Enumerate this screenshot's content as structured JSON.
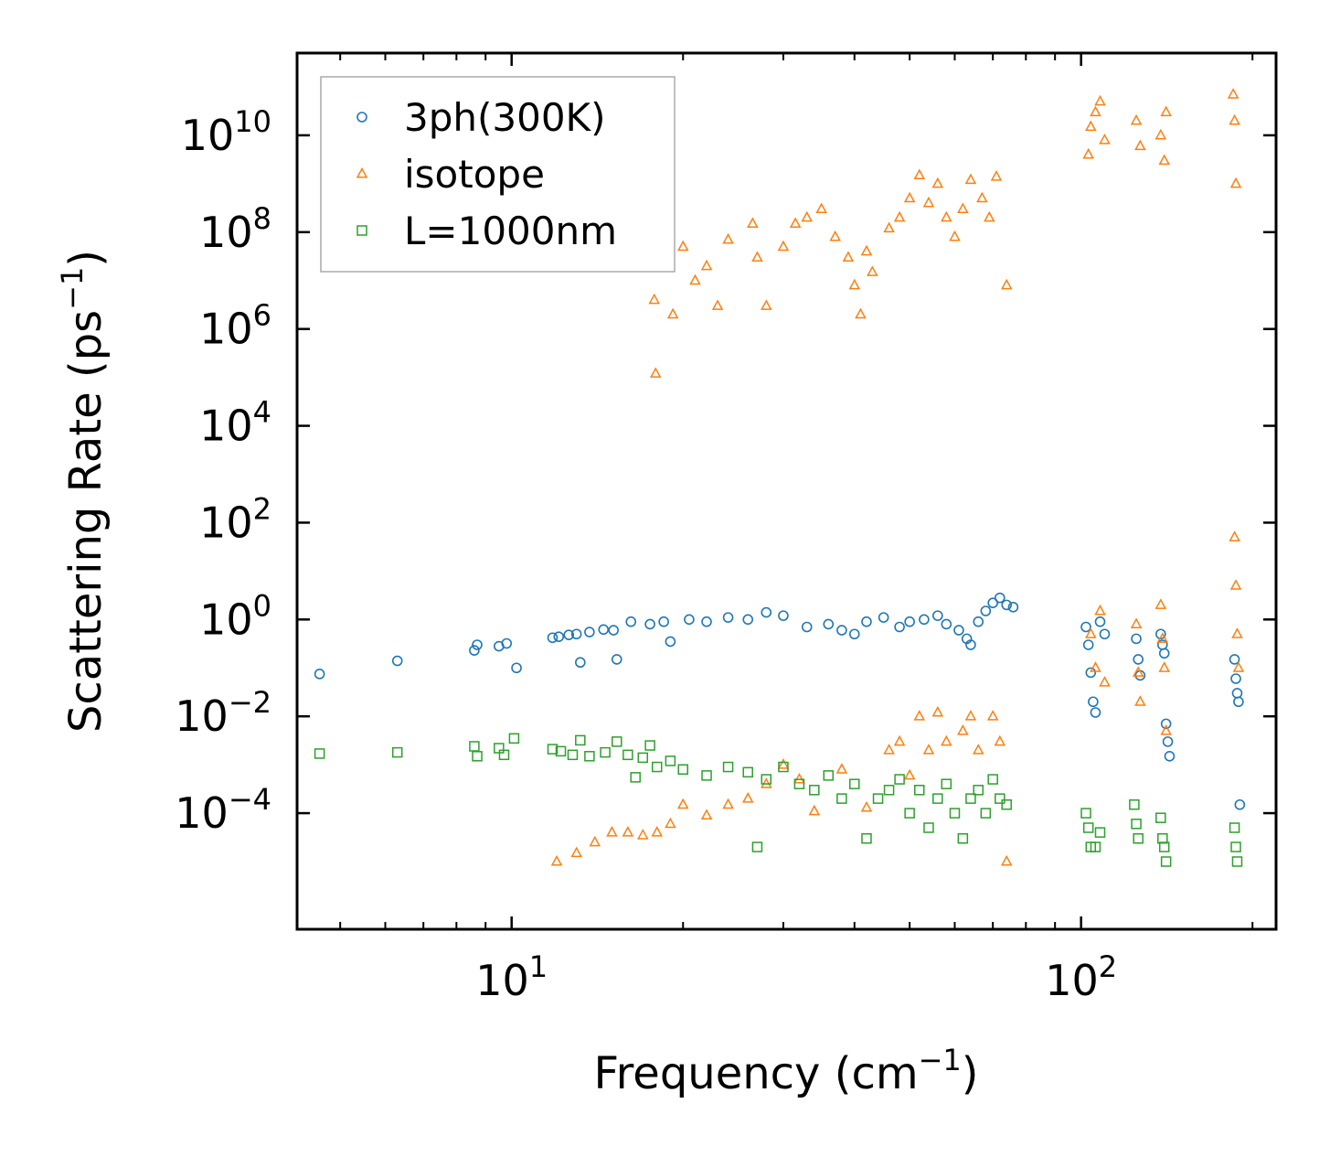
{
  "chart_data": {
    "type": "scatter",
    "title": "",
    "xlabel": "Frequency (cm$^{-1}$)",
    "xlabel_parts": {
      "text": "Frequency (cm",
      "sup": "−1",
      "tail": ")"
    },
    "ylabel_parts": {
      "text": "Scattering Rate (ps",
      "sup": "−1",
      "tail": ")"
    },
    "xscale": "log",
    "yscale": "log",
    "xlim": [
      4.2,
      220
    ],
    "ylim": [
      4e-07,
      500000000000.0
    ],
    "x_ticks": [
      {
        "value": 10,
        "base": "10",
        "exp": "1"
      },
      {
        "value": 100,
        "base": "10",
        "exp": "2"
      }
    ],
    "y_ticks": [
      {
        "value": 0.0001,
        "base": "10",
        "exp": "−4"
      },
      {
        "value": 0.01,
        "base": "10",
        "exp": "−2"
      },
      {
        "value": 1,
        "base": "10",
        "exp": "0"
      },
      {
        "value": 100,
        "base": "10",
        "exp": "2"
      },
      {
        "value": 10000.0,
        "base": "10",
        "exp": "4"
      },
      {
        "value": 1000000.0,
        "base": "10",
        "exp": "6"
      },
      {
        "value": 100000000.0,
        "base": "10",
        "exp": "8"
      },
      {
        "value": 10000000000.0,
        "base": "10",
        "exp": "10"
      }
    ],
    "legend_position": "top-left",
    "series": [
      {
        "name": "3ph(300K)",
        "marker": "circle",
        "color": "#1f77b4",
        "points": [
          [
            4.6,
            0.075
          ],
          [
            6.3,
            0.14
          ],
          [
            8.6,
            0.23
          ],
          [
            8.7,
            0.3
          ],
          [
            9.5,
            0.28
          ],
          [
            9.8,
            0.32
          ],
          [
            10.2,
            0.1
          ],
          [
            11.8,
            0.42
          ],
          [
            12.1,
            0.44
          ],
          [
            12.6,
            0.48
          ],
          [
            13.0,
            0.5
          ],
          [
            13.2,
            0.13
          ],
          [
            13.7,
            0.55
          ],
          [
            14.5,
            0.62
          ],
          [
            15.1,
            0.6
          ],
          [
            15.3,
            0.15
          ],
          [
            16.2,
            0.9
          ],
          [
            17.5,
            0.8
          ],
          [
            18.5,
            0.9
          ],
          [
            19.0,
            0.35
          ],
          [
            20.5,
            1.0
          ],
          [
            22,
            0.9
          ],
          [
            24,
            1.1
          ],
          [
            26,
            1.0
          ],
          [
            28,
            1.4
          ],
          [
            30,
            1.2
          ],
          [
            33,
            0.7
          ],
          [
            36,
            0.8
          ],
          [
            38,
            0.6
          ],
          [
            40,
            0.5
          ],
          [
            42,
            0.9
          ],
          [
            45,
            1.1
          ],
          [
            48,
            0.7
          ],
          [
            50,
            0.9
          ],
          [
            53,
            1.0
          ],
          [
            56,
            1.2
          ],
          [
            58,
            0.8
          ],
          [
            61,
            0.6
          ],
          [
            63,
            0.4
          ],
          [
            64,
            0.3
          ],
          [
            66,
            0.9
          ],
          [
            68,
            1.5
          ],
          [
            70,
            2.2
          ],
          [
            72,
            2.8
          ],
          [
            74,
            2.0
          ],
          [
            76,
            1.8
          ],
          [
            102,
            0.7
          ],
          [
            103,
            0.3
          ],
          [
            104,
            0.08
          ],
          [
            105,
            0.02
          ],
          [
            106,
            0.012
          ],
          [
            108,
            0.9
          ],
          [
            110,
            0.5
          ],
          [
            125,
            0.4
          ],
          [
            126,
            0.15
          ],
          [
            127,
            0.07
          ],
          [
            138,
            0.5
          ],
          [
            139,
            0.3
          ],
          [
            140,
            0.2
          ],
          [
            141,
            0.007
          ],
          [
            142,
            0.003
          ],
          [
            143,
            0.0015
          ],
          [
            186,
            0.15
          ],
          [
            187,
            0.06
          ],
          [
            188,
            0.03
          ],
          [
            189,
            0.02
          ],
          [
            190,
            0.00015
          ]
        ]
      },
      {
        "name": "isotope",
        "marker": "triangle",
        "color": "#ff7f0e",
        "points": [
          [
            17.8,
            4000000.0
          ],
          [
            17.9,
            120000.0
          ],
          [
            19.2,
            2000000.0
          ],
          [
            20.0,
            50000000.0
          ],
          [
            21.0,
            10000000.0
          ],
          [
            22.0,
            20000000.0
          ],
          [
            23.0,
            3000000.0
          ],
          [
            24.0,
            70000000.0
          ],
          [
            26.5,
            150000000.0
          ],
          [
            27.0,
            30000000.0
          ],
          [
            28.0,
            3000000.0
          ],
          [
            30.0,
            50000000.0
          ],
          [
            31.5,
            150000000.0
          ],
          [
            33.0,
            200000000.0
          ],
          [
            35.0,
            300000000.0
          ],
          [
            37.0,
            80000000.0
          ],
          [
            39.0,
            30000000.0
          ],
          [
            40.0,
            8000000.0
          ],
          [
            41.0,
            2000000.0
          ],
          [
            42.0,
            40000000.0
          ],
          [
            43.0,
            15000000.0
          ],
          [
            46.0,
            120000000.0
          ],
          [
            48.0,
            200000000.0
          ],
          [
            50.0,
            500000000.0
          ],
          [
            52.0,
            1500000000.0
          ],
          [
            54.0,
            400000000.0
          ],
          [
            56.0,
            1000000000.0
          ],
          [
            58.0,
            200000000.0
          ],
          [
            60.0,
            80000000.0
          ],
          [
            62.0,
            300000000.0
          ],
          [
            64.0,
            1200000000.0
          ],
          [
            67.0,
            500000000.0
          ],
          [
            69.0,
            200000000.0
          ],
          [
            71.0,
            1400000000.0
          ],
          [
            74.0,
            8000000.0
          ],
          [
            103.0,
            4000000000.0
          ],
          [
            104.0,
            15000000000.0
          ],
          [
            106.0,
            30000000000.0
          ],
          [
            108.0,
            50000000000.0
          ],
          [
            110.0,
            8000000000.0
          ],
          [
            125.0,
            20000000000.0
          ],
          [
            127.0,
            6000000000.0
          ],
          [
            138.0,
            10000000000.0
          ],
          [
            140.0,
            3000000000.0
          ],
          [
            141.0,
            30000000000.0
          ],
          [
            185.0,
            70000000000.0
          ],
          [
            186.0,
            20000000000.0
          ],
          [
            187.0,
            1000000000.0
          ],
          [
            12.0,
            1e-05
          ],
          [
            13.0,
            1.5e-05
          ],
          [
            14.0,
            2.5e-05
          ],
          [
            15.0,
            4e-05
          ],
          [
            16.0,
            4e-05
          ],
          [
            17.0,
            3.5e-05
          ],
          [
            18.0,
            4e-05
          ],
          [
            19.0,
            6e-05
          ],
          [
            20.0,
            0.00015
          ],
          [
            22.0,
            9e-05
          ],
          [
            24.0,
            0.00015
          ],
          [
            26.0,
            0.0002
          ],
          [
            28.0,
            0.0004
          ],
          [
            30.0,
            0.001
          ],
          [
            32.0,
            0.0005
          ],
          [
            34.0,
            0.00011
          ],
          [
            38.0,
            0.0008
          ],
          [
            42.0,
            0.00013
          ],
          [
            46.0,
            0.002
          ],
          [
            48.0,
            0.003
          ],
          [
            50.0,
            0.0006
          ],
          [
            52.0,
            0.01
          ],
          [
            54.0,
            0.002
          ],
          [
            56.0,
            0.012
          ],
          [
            58.0,
            0.003
          ],
          [
            62.0,
            0.005
          ],
          [
            64.0,
            0.01
          ],
          [
            66.0,
            0.002
          ],
          [
            70.0,
            0.01
          ],
          [
            72.0,
            0.003
          ],
          [
            74.0,
            1e-05
          ],
          [
            104.0,
            0.5
          ],
          [
            106.0,
            0.1
          ],
          [
            108.0,
            1.5
          ],
          [
            110.0,
            0.05
          ],
          [
            125.0,
            0.8
          ],
          [
            126.0,
            0.08
          ],
          [
            127.0,
            0.02
          ],
          [
            138.0,
            2
          ],
          [
            139.0,
            0.4
          ],
          [
            140.0,
            0.1
          ],
          [
            141.0,
            0.005
          ],
          [
            186.0,
            50
          ],
          [
            187.0,
            5
          ],
          [
            188.0,
            0.5
          ],
          [
            189.0,
            0.1
          ]
        ]
      },
      {
        "name": "L=1000nm",
        "marker": "square",
        "color": "#2ca02c",
        "points": [
          [
            4.6,
            0.0017
          ],
          [
            6.3,
            0.0018
          ],
          [
            8.6,
            0.0024
          ],
          [
            8.7,
            0.0015
          ],
          [
            9.5,
            0.0022
          ],
          [
            9.7,
            0.0016
          ],
          [
            10.1,
            0.0035
          ],
          [
            11.8,
            0.0021
          ],
          [
            12.2,
            0.0019
          ],
          [
            12.8,
            0.0016
          ],
          [
            13.2,
            0.0032
          ],
          [
            13.7,
            0.0015
          ],
          [
            14.6,
            0.0018
          ],
          [
            15.3,
            0.003
          ],
          [
            16.0,
            0.0016
          ],
          [
            16.5,
            0.00055
          ],
          [
            17.0,
            0.0014
          ],
          [
            17.5,
            0.0025
          ],
          [
            18.0,
            0.0009
          ],
          [
            19.0,
            0.0012
          ],
          [
            20.0,
            0.0008
          ],
          [
            22.0,
            0.0006
          ],
          [
            24.0,
            0.0009
          ],
          [
            26.0,
            0.0007
          ],
          [
            27.0,
            2e-05
          ],
          [
            28.0,
            0.0005
          ],
          [
            30.0,
            0.0009
          ],
          [
            32.0,
            0.0004
          ],
          [
            34.0,
            0.0003
          ],
          [
            36.0,
            0.0006
          ],
          [
            38.0,
            0.0002
          ],
          [
            40.0,
            0.0004
          ],
          [
            42.0,
            3e-05
          ],
          [
            44.0,
            0.0002
          ],
          [
            46.0,
            0.0003
          ],
          [
            48.0,
            0.0005
          ],
          [
            50.0,
            0.0001
          ],
          [
            52.0,
            0.0003
          ],
          [
            54.0,
            5e-05
          ],
          [
            56.0,
            0.0002
          ],
          [
            58.0,
            0.0004
          ],
          [
            60.0,
            0.0001
          ],
          [
            62.0,
            3e-05
          ],
          [
            64.0,
            0.0002
          ],
          [
            66.0,
            0.0003
          ],
          [
            68.0,
            0.0001
          ],
          [
            70.0,
            0.0005
          ],
          [
            72.0,
            0.0002
          ],
          [
            74.0,
            0.00015
          ],
          [
            102.0,
            0.0001
          ],
          [
            103.0,
            5e-05
          ],
          [
            104.0,
            2e-05
          ],
          [
            106.0,
            2e-05
          ],
          [
            108.0,
            4e-05
          ],
          [
            124.0,
            0.00015
          ],
          [
            125.0,
            6e-05
          ],
          [
            126.0,
            3e-05
          ],
          [
            138.0,
            8e-05
          ],
          [
            139.0,
            3e-05
          ],
          [
            140.0,
            2e-05
          ],
          [
            141.0,
            1e-05
          ],
          [
            186.0,
            5e-05
          ],
          [
            187.0,
            2e-05
          ],
          [
            188.0,
            1e-05
          ]
        ]
      }
    ]
  }
}
